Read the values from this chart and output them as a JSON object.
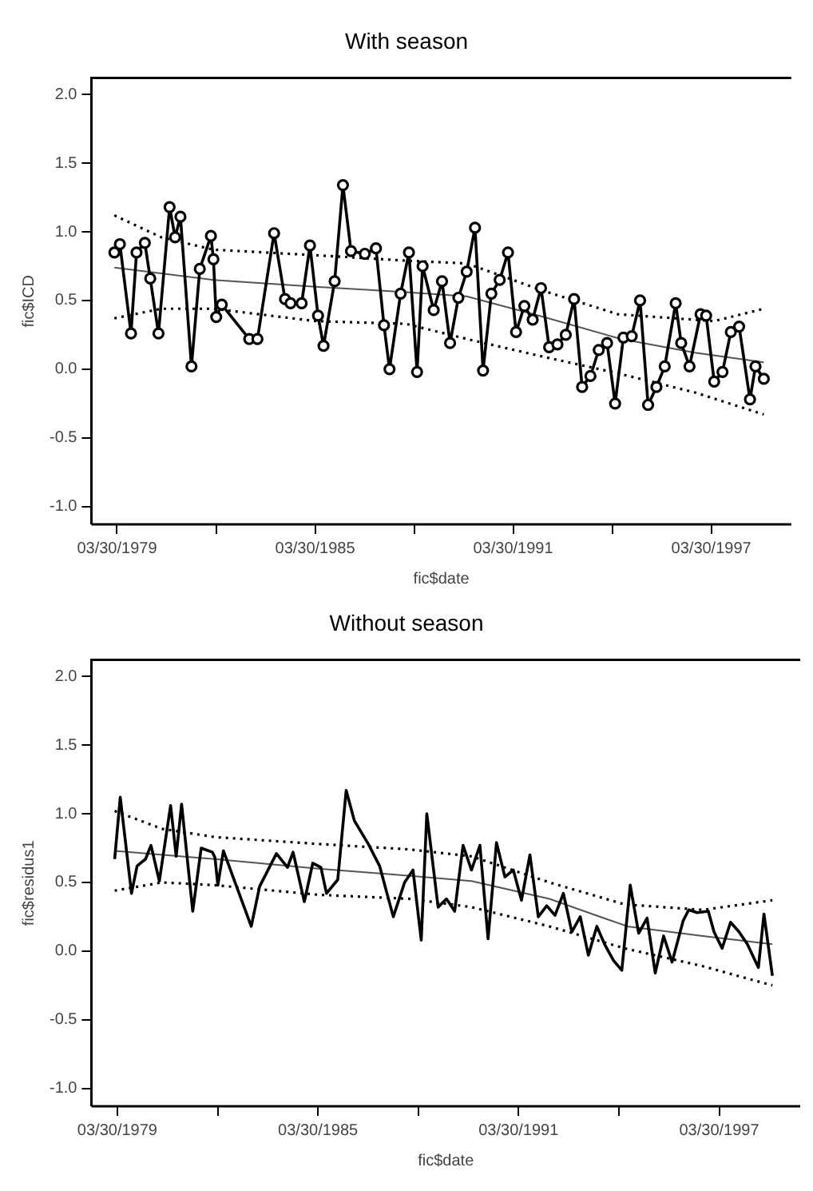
{
  "chart_data": [
    {
      "type": "line",
      "title": "With season",
      "xlabel": "fic$date",
      "ylabel": "fic$ICD",
      "x": [
        "1979-03",
        "1979-05",
        "1979-09",
        "1979-11",
        "1980-02",
        "1980-04",
        "1980-07",
        "1980-11",
        "1981-01",
        "1981-03",
        "1981-07",
        "1981-10",
        "1982-02",
        "1982-03",
        "1982-04",
        "1982-06",
        "1983-04",
        "1983-07",
        "1984-01",
        "1984-05",
        "1984-07",
        "1984-11",
        "1985-02",
        "1985-05",
        "1985-07",
        "1985-11",
        "1986-02",
        "1986-05",
        "1986-10",
        "1987-02",
        "1987-05",
        "1987-07",
        "1987-11",
        "1988-02",
        "1988-05",
        "1988-07",
        "1988-11",
        "1989-02",
        "1989-05",
        "1989-08",
        "1989-11",
        "1990-02",
        "1990-05",
        "1990-08",
        "1990-11",
        "1991-02",
        "1991-05",
        "1991-08",
        "1991-11",
        "1992-02",
        "1992-05",
        "1992-08",
        "1992-11",
        "1993-02",
        "1993-05",
        "1993-08",
        "1993-11",
        "1994-02",
        "1994-05",
        "1994-08",
        "1994-11",
        "1995-02",
        "1995-05",
        "1995-08",
        "1995-11",
        "1996-03",
        "1996-05",
        "1996-08",
        "1996-12",
        "1997-02",
        "1997-05",
        "1997-08",
        "1997-11",
        "1998-02",
        "1998-06",
        "1998-08",
        "1998-11"
      ],
      "xlim": [
        "1978-06-20",
        "1999-09-01"
      ],
      "xticks": [
        {
          "value": "1979-03-30",
          "label": "03/30/1979"
        },
        {
          "value": "1982-03-30",
          "label": null
        },
        {
          "value": "1985-03-30",
          "label": "03/30/1985"
        },
        {
          "value": "1988-03-30",
          "label": null
        },
        {
          "value": "1991-03-30",
          "label": "03/30/1991"
        },
        {
          "value": "1994-03-30",
          "label": null
        },
        {
          "value": "1997-03-30",
          "label": "03/30/1997"
        }
      ],
      "ylim": [
        -1.13,
        2.12
      ],
      "yticks": [
        {
          "value": -1,
          "label": "-1.0"
        },
        {
          "value": -0.5,
          "label": "-0.5"
        },
        {
          "value": 0,
          "label": "0.0"
        },
        {
          "value": 0.5,
          "label": "0.5"
        },
        {
          "value": 1,
          "label": "1.0"
        },
        {
          "value": 1.5,
          "label": "1.5"
        },
        {
          "value": 2,
          "label": "2.0"
        }
      ],
      "grid": false,
      "series": [
        {
          "color": "#000000",
          "marker": "circle",
          "line_style": "solid",
          "values": [
            0.85,
            0.91,
            0.26,
            0.85,
            0.92,
            0.66,
            0.26,
            1.18,
            0.96,
            1.11,
            0.02,
            0.73,
            0.97,
            0.8,
            0.38,
            0.47,
            0.22,
            0.22,
            0.99,
            0.51,
            0.48,
            0.48,
            0.9,
            0.39,
            0.17,
            0.64,
            1.34,
            0.86,
            0.84,
            0.88,
            0.32,
            0.0,
            0.55,
            0.85,
            -0.02,
            0.75,
            0.43,
            0.64,
            0.19,
            0.52,
            0.71,
            1.03,
            -0.01,
            0.55,
            0.65,
            0.85,
            0.27,
            0.46,
            0.36,
            0.59,
            0.16,
            0.18,
            0.25,
            0.51,
            -0.13,
            -0.05,
            0.14,
            0.19,
            -0.25,
            0.23,
            0.24,
            0.5,
            -0.26,
            -0.13,
            0.02,
            0.48,
            0.19,
            0.02,
            0.4,
            0.39,
            -0.09,
            -0.02,
            0.27,
            0.31,
            -0.22,
            0.02,
            -0.07
          ]
        },
        {
          "color": "#555555",
          "marker": "none",
          "line_style": "solid",
          "x": [
            "1979-03",
            "1982-03",
            "1985-04",
            "1987-06",
            "1989-11",
            "1992-03",
            "1994-07",
            "1996-10",
            "1998-11"
          ],
          "values": [
            0.74,
            0.65,
            0.6,
            0.57,
            0.53,
            0.38,
            0.22,
            0.12,
            0.05
          ]
        },
        {
          "color": "#000000",
          "marker": "none",
          "line_style": "dotted",
          "x": [
            "1979-03",
            "1980-08",
            "1982-03",
            "1985-04",
            "1988-01",
            "1989-11",
            "1992-03",
            "1994-06",
            "1997-05",
            "1998-11"
          ],
          "values": [
            1.12,
            0.96,
            0.87,
            0.83,
            0.79,
            0.77,
            0.57,
            0.4,
            0.35,
            0.44
          ]
        },
        {
          "color": "#000000",
          "marker": "none",
          "line_style": "dotted",
          "x": [
            "1979-03",
            "1980-08",
            "1982-03",
            "1985-04",
            "1988-01",
            "1989-11",
            "1992-03",
            "1994-06",
            "1996-10",
            "1998-11"
          ],
          "values": [
            0.37,
            0.44,
            0.44,
            0.35,
            0.33,
            0.22,
            0.09,
            -0.03,
            -0.17,
            -0.33
          ]
        }
      ]
    },
    {
      "type": "line",
      "title": "Without season",
      "xlabel": "fic$date",
      "ylabel": "fic$residus1",
      "x": [
        "1979-03",
        "1979-05",
        "1979-09",
        "1979-11",
        "1980-02",
        "1980-04",
        "1980-07",
        "1980-11",
        "1981-01",
        "1981-03",
        "1981-07",
        "1981-10",
        "1982-02",
        "1982-03",
        "1982-04",
        "1982-06",
        "1983-04",
        "1983-07",
        "1984-01",
        "1984-05",
        "1984-07",
        "1984-11",
        "1985-02",
        "1985-05",
        "1985-07",
        "1985-11",
        "1986-02",
        "1986-05",
        "1986-10",
        "1987-02",
        "1987-05",
        "1987-07",
        "1987-11",
        "1988-02",
        "1988-05",
        "1988-07",
        "1988-11",
        "1989-02",
        "1989-05",
        "1989-08",
        "1989-11",
        "1990-02",
        "1990-05",
        "1990-08",
        "1990-11",
        "1991-02",
        "1991-05",
        "1991-08",
        "1991-11",
        "1992-02",
        "1992-05",
        "1992-08",
        "1992-11",
        "1993-02",
        "1993-05",
        "1993-08",
        "1993-11",
        "1994-02",
        "1994-05",
        "1994-08",
        "1994-11",
        "1995-02",
        "1995-05",
        "1995-08",
        "1995-11",
        "1996-03",
        "1996-05",
        "1996-08",
        "1996-12",
        "1997-02",
        "1997-05",
        "1997-08",
        "1997-11",
        "1998-02",
        "1998-06",
        "1998-08",
        "1998-11"
      ],
      "xlim": [
        "1978-06-20",
        "1999-09-01"
      ],
      "xticks": [
        {
          "value": "1979-03-30",
          "label": "03/30/1979"
        },
        {
          "value": "1982-03-30",
          "label": null
        },
        {
          "value": "1985-03-30",
          "label": "03/30/1985"
        },
        {
          "value": "1988-03-30",
          "label": null
        },
        {
          "value": "1991-03-30",
          "label": "03/30/1991"
        },
        {
          "value": "1994-03-30",
          "label": null
        },
        {
          "value": "1997-03-30",
          "label": "03/30/1997"
        }
      ],
      "ylim": [
        -1.13,
        2.12
      ],
      "yticks": [
        {
          "value": -1,
          "label": "-1.0"
        },
        {
          "value": -0.5,
          "label": "-0.5"
        },
        {
          "value": 0,
          "label": "0.0"
        },
        {
          "value": 0.5,
          "label": "0.5"
        },
        {
          "value": 1,
          "label": "1.0"
        },
        {
          "value": 1.5,
          "label": "1.5"
        },
        {
          "value": 2,
          "label": "2.0"
        }
      ],
      "grid": false,
      "series": [
        {
          "color": "#000000",
          "marker": "none",
          "line_style": "solid",
          "values": [
            0.67,
            1.12,
            0.42,
            0.62,
            0.67,
            0.77,
            0.51,
            1.06,
            0.69,
            1.07,
            0.29,
            0.75,
            0.72,
            0.68,
            0.48,
            0.73,
            0.18,
            0.47,
            0.71,
            0.61,
            0.72,
            0.36,
            0.64,
            0.61,
            0.42,
            0.52,
            1.17,
            0.95,
            0.78,
            0.62,
            0.4,
            0.25,
            0.5,
            0.59,
            0.08,
            1.0,
            0.32,
            0.38,
            0.29,
            0.77,
            0.59,
            0.77,
            0.09,
            0.79,
            0.54,
            0.59,
            0.37,
            0.7,
            0.25,
            0.33,
            0.26,
            0.42,
            0.14,
            0.25,
            -0.03,
            0.18,
            0.04,
            -0.07,
            -0.14,
            0.48,
            0.13,
            0.24,
            -0.16,
            0.11,
            -0.08,
            0.22,
            0.3,
            0.28,
            0.29,
            0.14,
            0.02,
            0.21,
            0.14,
            0.05,
            -0.12,
            0.27,
            -0.18
          ]
        },
        {
          "color": "#555555",
          "marker": "none",
          "line_style": "solid",
          "x": [
            "1979-03",
            "1982-03",
            "1985-04",
            "1987-06",
            "1989-11",
            "1992-03",
            "1994-07",
            "1996-10",
            "1998-11"
          ],
          "values": [
            0.73,
            0.67,
            0.6,
            0.56,
            0.51,
            0.38,
            0.18,
            0.11,
            0.05
          ]
        },
        {
          "color": "#000000",
          "marker": "none",
          "line_style": "dotted",
          "x": [
            "1979-03",
            "1980-08",
            "1982-03",
            "1985-04",
            "1988-01",
            "1989-11",
            "1992-03",
            "1994-06",
            "1996-10",
            "1998-11"
          ],
          "values": [
            1.02,
            0.89,
            0.83,
            0.78,
            0.74,
            0.69,
            0.5,
            0.34,
            0.3,
            0.37
          ]
        },
        {
          "color": "#000000",
          "marker": "none",
          "line_style": "dotted",
          "x": [
            "1979-03",
            "1980-08",
            "1982-03",
            "1985-04",
            "1988-01",
            "1989-11",
            "1992-03",
            "1994-06",
            "1996-10",
            "1998-11"
          ],
          "values": [
            0.44,
            0.5,
            0.48,
            0.41,
            0.38,
            0.32,
            0.18,
            0.02,
            -0.11,
            -0.25
          ]
        }
      ]
    }
  ]
}
